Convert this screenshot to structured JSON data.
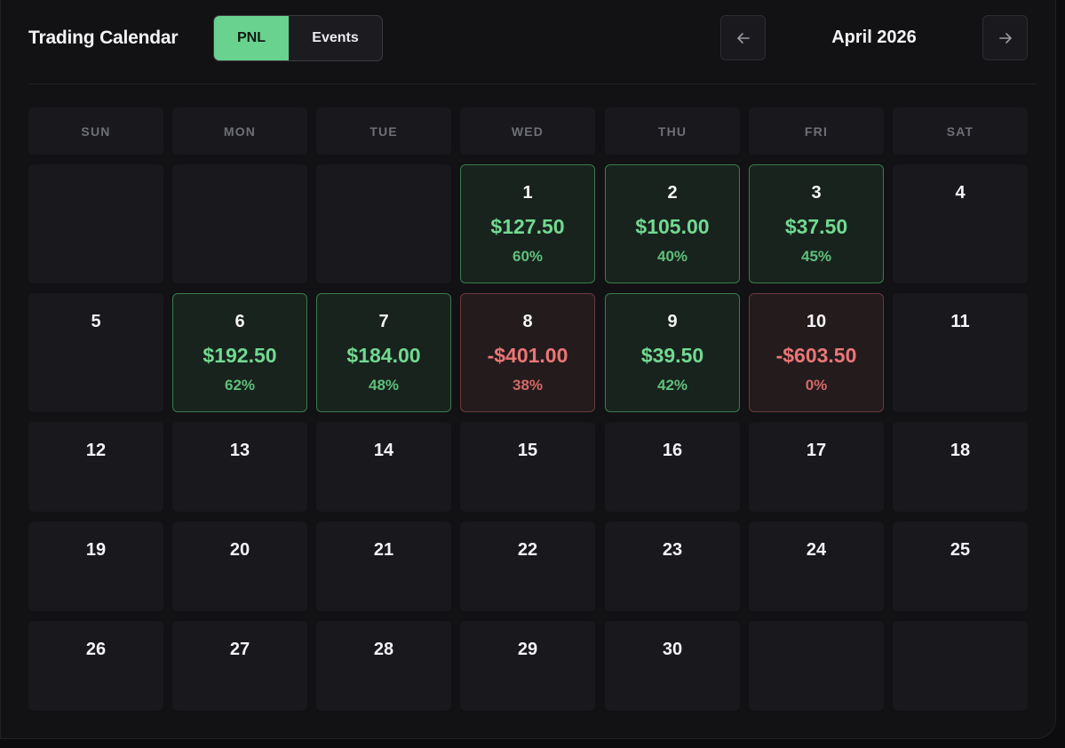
{
  "header": {
    "title": "Trading Calendar",
    "toggle": {
      "pnl_label": "PNL",
      "events_label": "Events",
      "active": "PNL"
    },
    "month_label": "April 2026",
    "prev_icon": "arrow-left-icon",
    "next_icon": "arrow-right-icon"
  },
  "weekdays": [
    "SUN",
    "MON",
    "TUE",
    "WED",
    "THU",
    "FRI",
    "SAT"
  ],
  "colors": {
    "accent_green": "#69d28e",
    "profit_text": "#72d992",
    "loss_text": "#ea7676",
    "background": "#121215"
  },
  "weeks": [
    [
      {
        "day": ""
      },
      {
        "day": ""
      },
      {
        "day": ""
      },
      {
        "day": "1",
        "pnl": "$127.50",
        "pct": "60%",
        "status": "profit"
      },
      {
        "day": "2",
        "pnl": "$105.00",
        "pct": "40%",
        "status": "profit"
      },
      {
        "day": "3",
        "pnl": "$37.50",
        "pct": "45%",
        "status": "profit"
      },
      {
        "day": "4"
      }
    ],
    [
      {
        "day": "5"
      },
      {
        "day": "6",
        "pnl": "$192.50",
        "pct": "62%",
        "status": "profit"
      },
      {
        "day": "7",
        "pnl": "$184.00",
        "pct": "48%",
        "status": "profit"
      },
      {
        "day": "8",
        "pnl": "-$401.00",
        "pct": "38%",
        "status": "loss"
      },
      {
        "day": "9",
        "pnl": "$39.50",
        "pct": "42%",
        "status": "profit"
      },
      {
        "day": "10",
        "pnl": "-$603.50",
        "pct": "0%",
        "status": "loss"
      },
      {
        "day": "11"
      }
    ],
    [
      {
        "day": "12"
      },
      {
        "day": "13"
      },
      {
        "day": "14"
      },
      {
        "day": "15"
      },
      {
        "day": "16"
      },
      {
        "day": "17"
      },
      {
        "day": "18"
      }
    ],
    [
      {
        "day": "19"
      },
      {
        "day": "20"
      },
      {
        "day": "21"
      },
      {
        "day": "22"
      },
      {
        "day": "23"
      },
      {
        "day": "24"
      },
      {
        "day": "25"
      }
    ],
    [
      {
        "day": "26"
      },
      {
        "day": "27"
      },
      {
        "day": "28"
      },
      {
        "day": "29"
      },
      {
        "day": "30"
      },
      {
        "day": ""
      },
      {
        "day": ""
      }
    ]
  ]
}
